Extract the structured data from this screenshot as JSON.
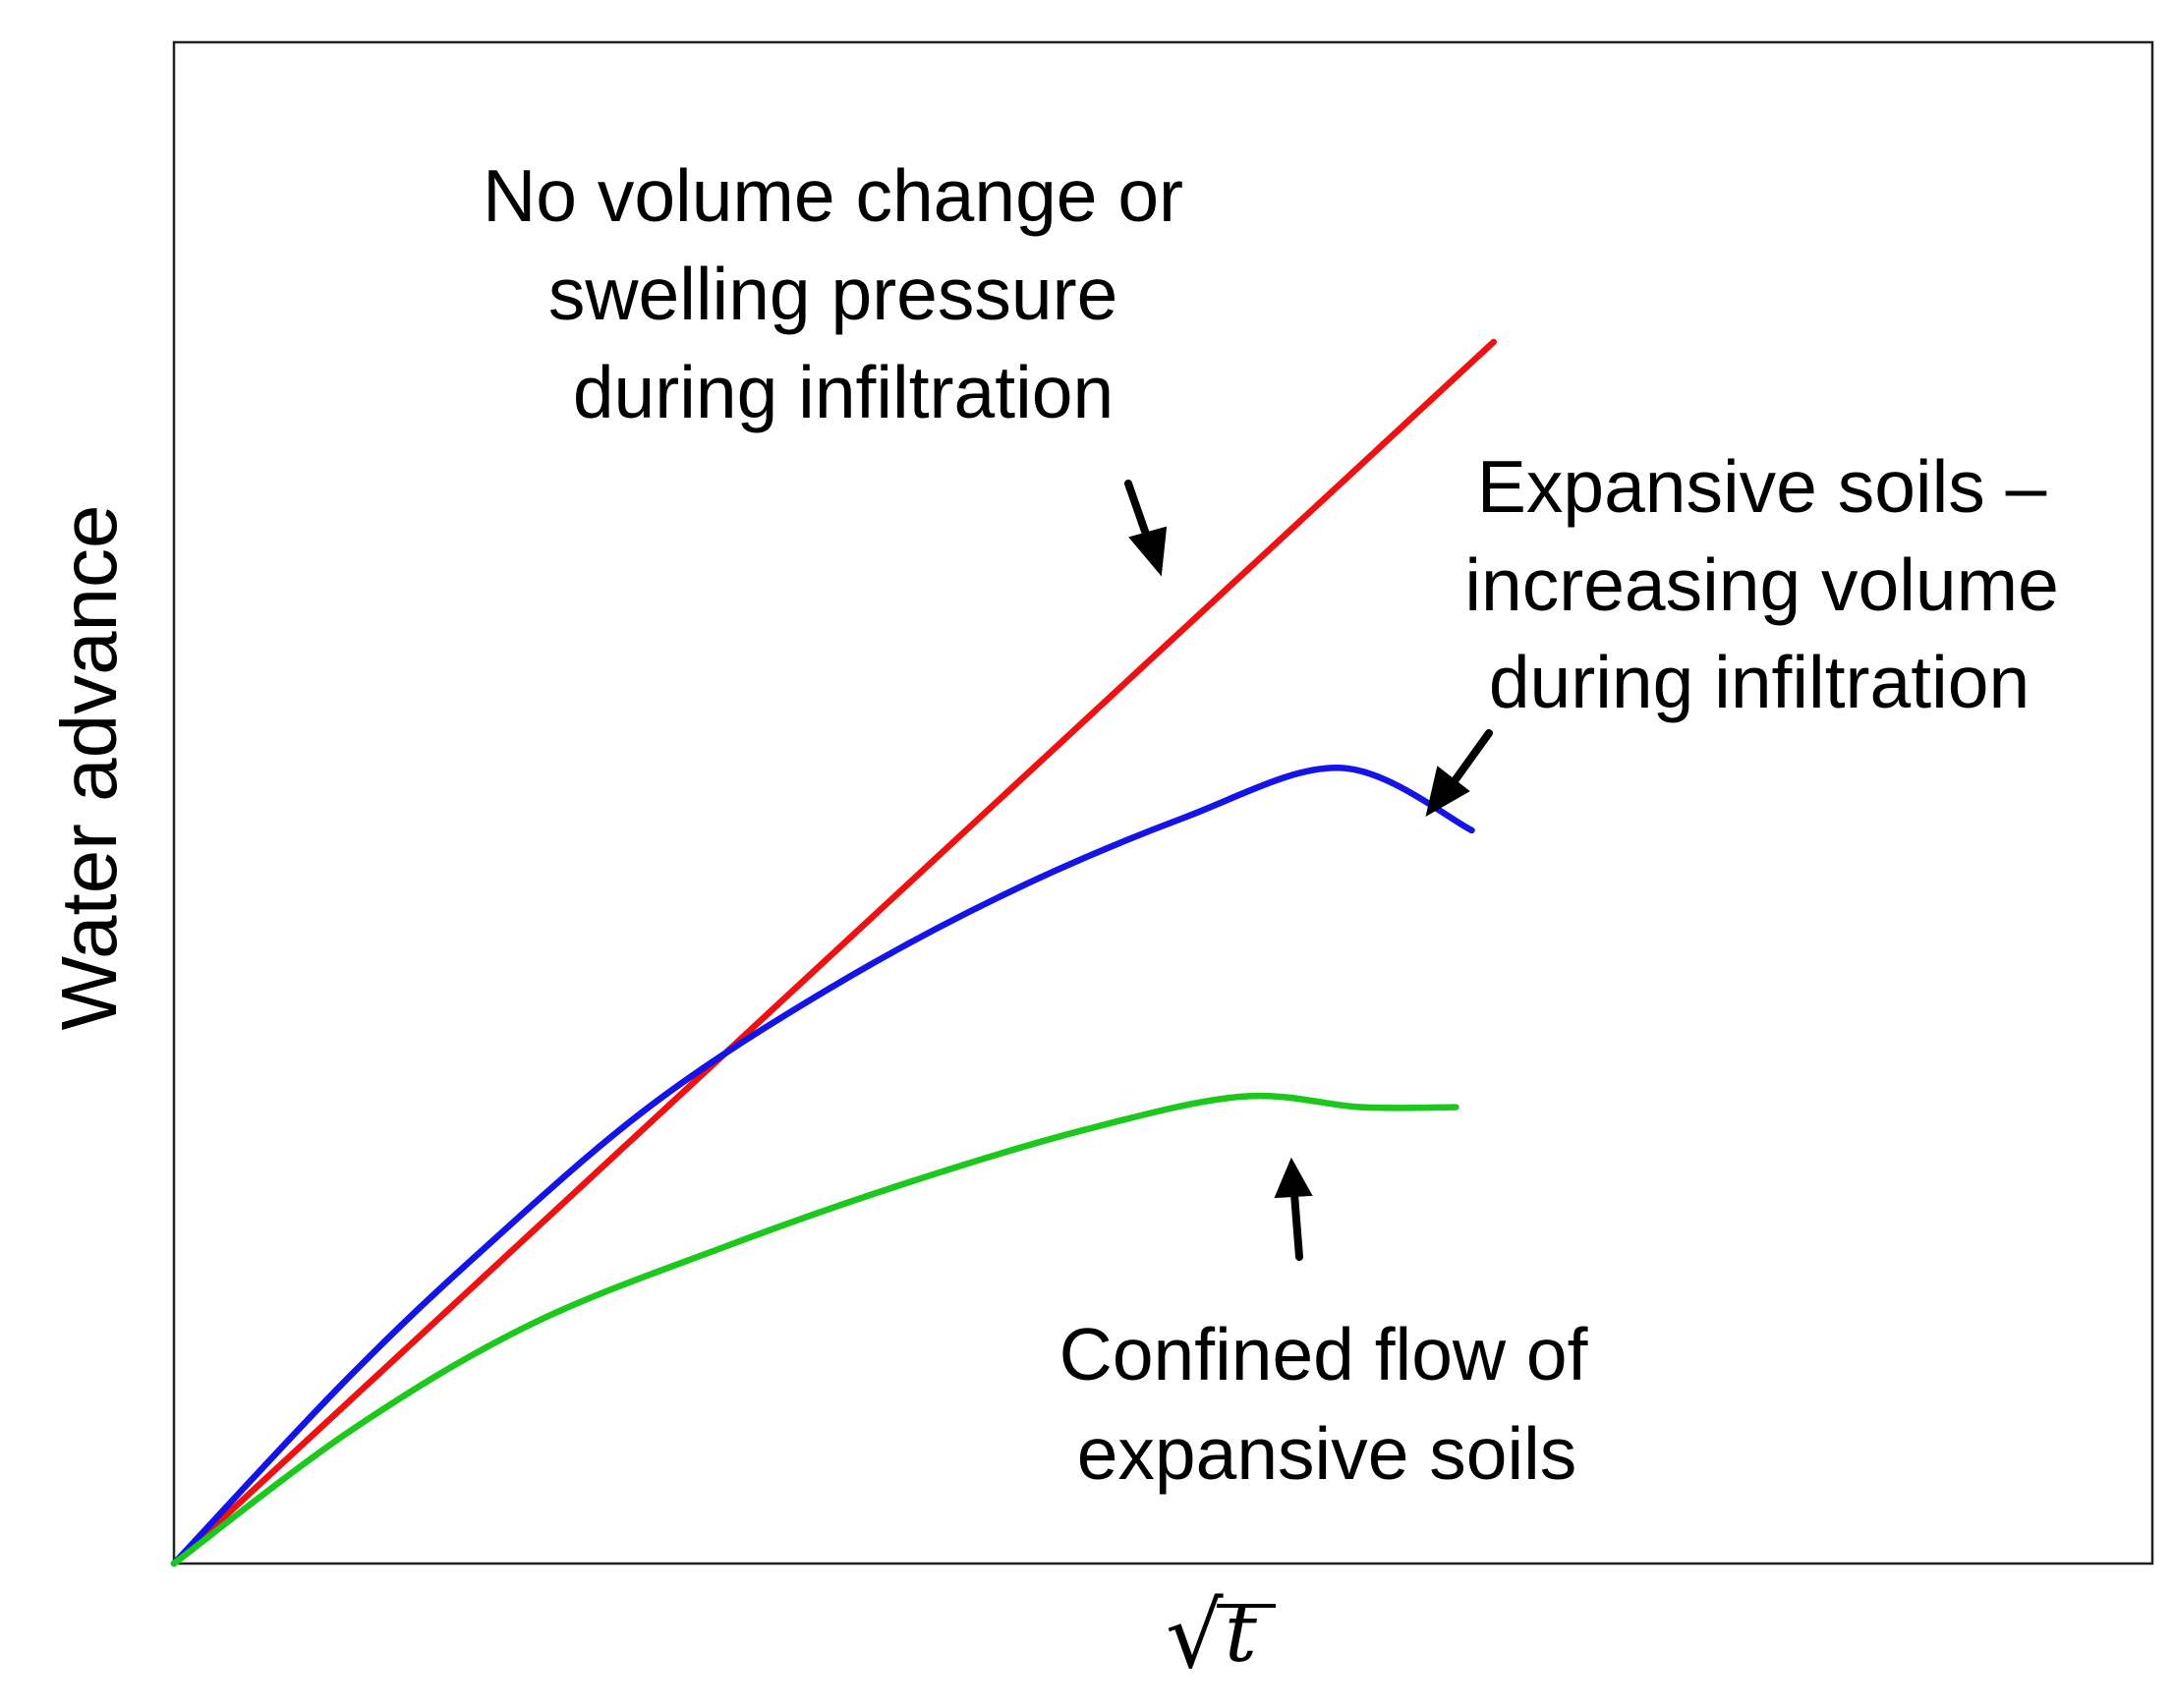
{
  "chart_data": {
    "type": "line",
    "title": "",
    "xlabel": "√t",
    "xlabel_radical": "√",
    "xlabel_variable": "t",
    "ylabel": "Water advance",
    "xlim": [
      0,
      1
    ],
    "ylim": [
      0,
      1
    ],
    "grid": false,
    "ticks": false,
    "series": [
      {
        "name": "no-volume-change",
        "color": "#ee1111",
        "x": [
          0,
          0.667
        ],
        "y": [
          0,
          0.803
        ]
      },
      {
        "name": "expansive-soils",
        "color": "#1414e6",
        "x": [
          0,
          0.085,
          0.155,
          0.24,
          0.33,
          0.42,
          0.51,
          0.59,
          0.656
        ],
        "y": [
          0,
          0.118,
          0.205,
          0.3,
          0.377,
          0.44,
          0.49,
          0.523,
          0.482
        ]
      },
      {
        "name": "confined-flow",
        "color": "#1cc81c",
        "x": [
          0,
          0.09,
          0.18,
          0.28,
          0.37,
          0.46,
          0.54,
          0.6,
          0.648
        ],
        "y": [
          0,
          0.088,
          0.157,
          0.209,
          0.25,
          0.285,
          0.307,
          0.3,
          0.3
        ]
      }
    ],
    "annotations": [
      {
        "name": "no-volume-change",
        "lines": [
          "No volume change or",
          "swelling pressure",
          "during infiltration"
        ]
      },
      {
        "name": "expansive-soils",
        "lines": [
          "Expansive soils –",
          "increasing volume",
          "during infiltration"
        ]
      },
      {
        "name": "confined-flow",
        "lines": [
          "Confined flow of",
          "expansive soils"
        ]
      }
    ]
  }
}
